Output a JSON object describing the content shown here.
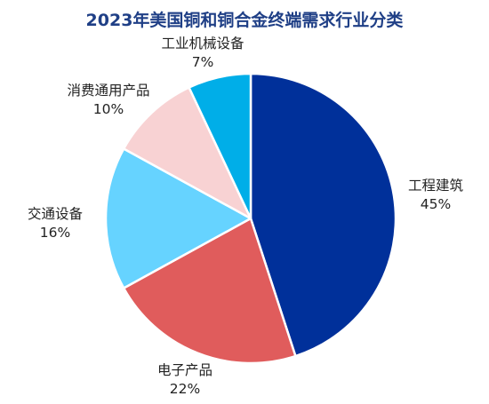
{
  "chart_data": {
    "type": "pie",
    "title": "2023年美国铜和铜合金终端需求行业分类",
    "start_angle_deg": 0,
    "direction": "clockwise",
    "slices": [
      {
        "label": "工程建筑",
        "value": 45,
        "value_label": "45%",
        "color": "#00309a"
      },
      {
        "label": "电子产品",
        "value": 22,
        "value_label": "22%",
        "color": "#e05c5c"
      },
      {
        "label": "交通设备",
        "value": 16,
        "value_label": "16%",
        "color": "#66d3ff"
      },
      {
        "label": "消费通用产品",
        "value": 10,
        "value_label": "10%",
        "color": "#f8d2d3"
      },
      {
        "label": "工业机械设备",
        "value": 7,
        "value_label": "7%",
        "color": "#00aee8"
      }
    ],
    "slice_border_color": "#ffffff"
  }
}
